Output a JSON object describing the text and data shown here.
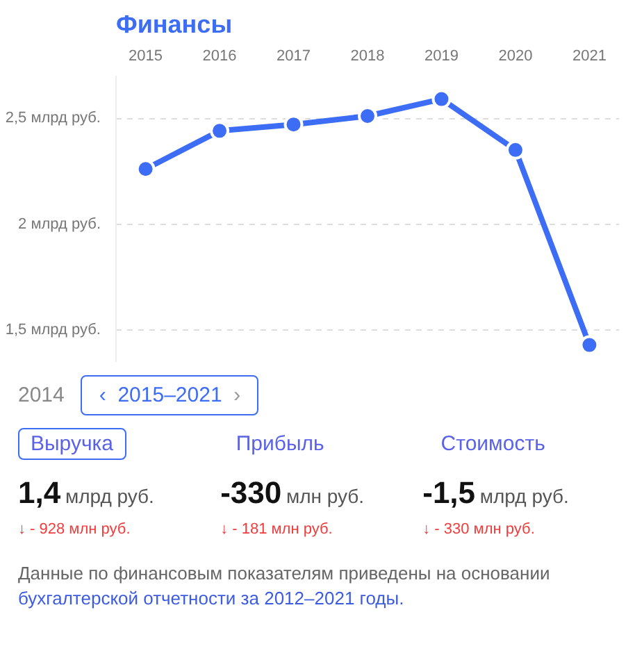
{
  "chart_data": {
    "type": "line",
    "title": "Финансы",
    "categories": [
      "2015",
      "2016",
      "2017",
      "2018",
      "2019",
      "2020",
      "2021"
    ],
    "series": [
      {
        "color": "#3d6cf5",
        "values": [
          2.26,
          2.44,
          2.47,
          2.51,
          2.59,
          2.35,
          1.43
        ]
      }
    ],
    "yticks": [
      {
        "value": 1.5,
        "label": "1,5 млрд руб."
      },
      {
        "value": 2,
        "label": "2 млрд руб."
      },
      {
        "value": 2.5,
        "label": "2,5 млрд руб."
      }
    ],
    "ylim": [
      1.35,
      2.7
    ],
    "grid": "y",
    "marker": "circle",
    "line_style": "solid",
    "annotations": [
      "2014",
      "‹",
      "2015–2021",
      "›",
      "Выручка",
      "Прибыль",
      "Стоимость",
      "1,4",
      "млрд руб.",
      "-330",
      "млн руб.",
      "-1,5",
      "млрд руб.",
      "↓ - 928 млн руб.",
      "↓ - 181 млн руб.",
      "↓ - 330 млн руб.",
      "Данные по финансовым показателям приведены на основании",
      "бухгалтерской отчетности за 2012–2021 годы."
    ]
  }
}
